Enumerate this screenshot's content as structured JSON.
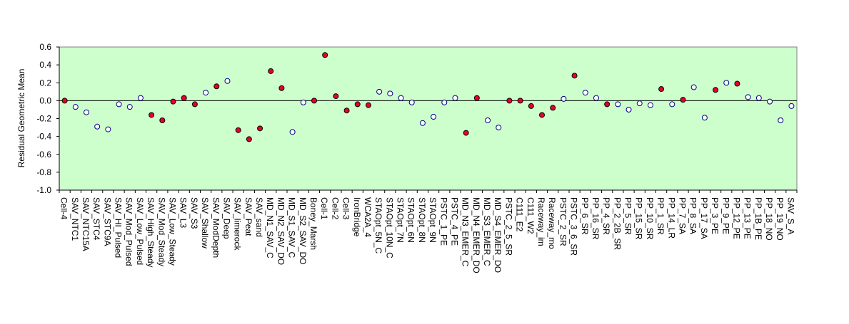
{
  "chart_data": {
    "type": "scatter",
    "title": "",
    "xlabel": "",
    "ylabel": "Residual Geometric Mean",
    "ylim": [
      -1.0,
      0.6
    ],
    "yticks": [
      "0.6",
      "0.4",
      "0.2",
      "0.0",
      "-0.2",
      "-0.4",
      "-0.6",
      "-0.8",
      "-1.0"
    ],
    "plot_background": "#ccffcc",
    "grid": false,
    "legend": "none",
    "colors": {
      "significant": "#e8002a",
      "not_significant": "#ffffff",
      "marker_edge": "#000080"
    },
    "categories": [
      "Cell-4",
      "SAV_NTC1",
      "SAV_NTC15A",
      "SAV_STC4",
      "SAV_STC9A",
      "SAV_HI_Pulsed",
      "SAV_Mod_Pulsed",
      "SAV_Low_Pulsed",
      "SAV_High_Steady",
      "SAV_Mod_Steady",
      "SAV_Low_Steady",
      "SAV_L3",
      "SAV_S3",
      "SAV_Shallow",
      "SAV_ModDepth",
      "SAV_Deep",
      "SAV_limerock",
      "SAV_Peat",
      "SAV_sand",
      "MD_N1_SAV_C",
      "MD_N2_SAV_DO",
      "MD_S1_SAV_C",
      "MD_S2_SAV_DO",
      "Boney_Marsh",
      "Cell-1",
      "Cell-2",
      "Cell-3",
      "IronBridge",
      "WCA2A_4",
      "STAOpt_5N_C",
      "STAOpt_10N_C",
      "STAOpt_7N",
      "STAOpt_6N",
      "STAOpt_8N",
      "STAOpt_9N",
      "PSTC_1_PE",
      "PSTC_4_PE",
      "MD_N3_EMER_C",
      "MD_N4_EMER_DO",
      "MD_S3_EMER_C",
      "MD_S4_EMER_DO",
      "PSTC_2_5_SR",
      "C111_E2",
      "C111_W2",
      "Raceway_im",
      "Raceway_mo",
      "PSTC_2_SR",
      "PSTC_3_6_SR",
      "PP_6_SR",
      "PP_16_SR",
      "PP_4_SR",
      "PP_2_2B_SR",
      "PP_5_SR",
      "PP_15_SR",
      "PP_10_SR",
      "PP_1_SR",
      "PP_14_LR",
      "PP_7_SA",
      "PP_8_SA",
      "PP_17_SA",
      "PP_3_PE",
      "PP_9_PE",
      "PP_12_PE",
      "PP_13_PE",
      "PP_1B_PE",
      "PP_18_NO",
      "PP_19_NO",
      "SAV_S_A"
    ],
    "series": [
      {
        "values": [
          0.0,
          -0.07,
          -0.13,
          -0.29,
          -0.32,
          -0.04,
          -0.07,
          0.03,
          -0.16,
          -0.22,
          -0.01,
          0.03,
          -0.04,
          0.09,
          0.16,
          0.22,
          -0.33,
          -0.43,
          -0.31,
          0.33,
          0.14,
          -0.35,
          -0.02,
          0.0,
          0.51,
          0.05,
          -0.11,
          -0.04,
          -0.05,
          0.1,
          0.08,
          0.03,
          -0.02,
          -0.25,
          -0.18,
          -0.02,
          0.03,
          -0.36,
          0.03,
          -0.22,
          -0.3,
          0.0,
          0.0,
          -0.06,
          -0.16,
          -0.08,
          0.02,
          0.28,
          0.09,
          0.03,
          -0.04,
          -0.04,
          -0.1,
          -0.03,
          -0.05,
          0.13,
          -0.04,
          0.01,
          0.15,
          -0.19,
          0.12,
          0.2,
          0.19,
          0.04,
          0.03,
          -0.01,
          -0.22,
          -0.06
        ],
        "significant": [
          true,
          false,
          false,
          false,
          false,
          false,
          false,
          false,
          true,
          true,
          true,
          true,
          true,
          false,
          true,
          false,
          true,
          true,
          true,
          true,
          true,
          false,
          false,
          true,
          true,
          true,
          true,
          true,
          true,
          false,
          false,
          false,
          false,
          false,
          false,
          false,
          false,
          true,
          true,
          false,
          false,
          true,
          true,
          true,
          true,
          true,
          false,
          true,
          false,
          false,
          true,
          false,
          false,
          false,
          false,
          true,
          false,
          true,
          false,
          false,
          true,
          false,
          true,
          false,
          false,
          false,
          false,
          false
        ]
      }
    ]
  }
}
